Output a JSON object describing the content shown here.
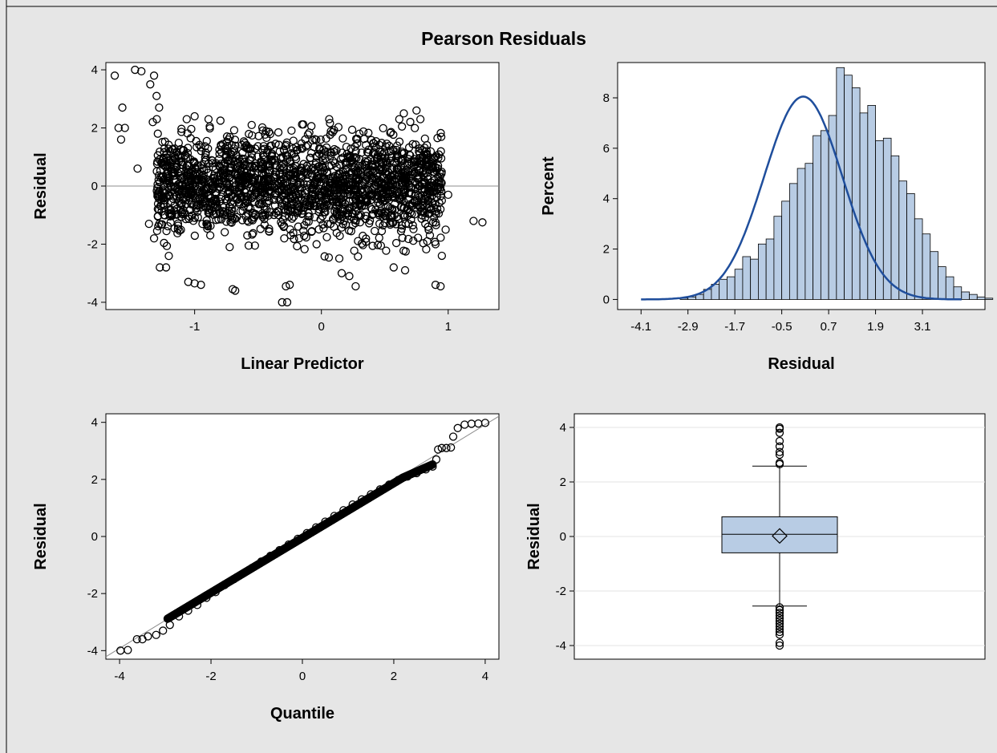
{
  "title": "Pearson Residuals",
  "colors": {
    "background": "#e6e6e6",
    "panel": "#ffffff",
    "bar_fill": "#b8cce4",
    "curve": "#1f4e9c",
    "marker": "#000000",
    "reference_line": "#8c8c8c",
    "grid": "#e3e3e3"
  },
  "chart_data": [
    {
      "id": "residual-vs-predictor",
      "type": "scatter",
      "xlabel": "Linear Predictor",
      "ylabel": "Residual",
      "xlim": [
        -1.7,
        1.4
      ],
      "ylim": [
        -4.25,
        4.25
      ],
      "xticks": [
        -1,
        0,
        1
      ],
      "yticks": [
        -4,
        -2,
        0,
        2,
        4
      ],
      "reference_line_y": 0,
      "marker": "open-circle",
      "points": [
        {
          "x": -1.63,
          "y": 3.8
        },
        {
          "x": -1.6,
          "y": 2.0
        },
        {
          "x": -1.58,
          "y": 1.6
        },
        {
          "x": -1.57,
          "y": 2.7
        },
        {
          "x": -1.55,
          "y": 2.0
        },
        {
          "x": -1.47,
          "y": 4.0
        },
        {
          "x": -1.42,
          "y": 3.95
        },
        {
          "x": -1.35,
          "y": 3.5
        },
        {
          "x": -1.32,
          "y": 3.8
        },
        {
          "x": -1.3,
          "y": 3.1
        },
        {
          "x": -1.28,
          "y": 2.7
        },
        {
          "x": -1.33,
          "y": 2.2
        },
        {
          "x": -1.45,
          "y": 0.6
        },
        {
          "x": -1.36,
          "y": -1.3
        },
        {
          "x": -1.32,
          "y": -1.8
        },
        {
          "x": 1.2,
          "y": -1.2
        },
        {
          "x": 1.27,
          "y": -1.25
        },
        {
          "x": -1.05,
          "y": -3.3
        },
        {
          "x": -1.0,
          "y": -3.35
        },
        {
          "x": -0.95,
          "y": -3.4
        },
        {
          "x": -0.7,
          "y": -3.55
        },
        {
          "x": -0.68,
          "y": -3.6
        },
        {
          "x": -0.28,
          "y": -3.45
        },
        {
          "x": -0.25,
          "y": -3.4
        },
        {
          "x": -0.27,
          "y": -4.0
        },
        {
          "x": -0.31,
          "y": -4.0
        },
        {
          "x": 0.57,
          "y": -2.8
        },
        {
          "x": 0.66,
          "y": -2.9
        },
        {
          "x": 0.9,
          "y": -3.4
        },
        {
          "x": 0.94,
          "y": -3.45
        },
        {
          "x": 0.95,
          "y": -2.4
        },
        {
          "x": 0.9,
          "y": -2.0
        },
        {
          "x": 0.16,
          "y": -3.0
        },
        {
          "x": 0.22,
          "y": -3.1
        },
        {
          "x": 0.27,
          "y": -3.45
        },
        {
          "x": -0.55,
          "y": 2.1
        },
        {
          "x": 0.65,
          "y": 2.5
        },
        {
          "x": 0.75,
          "y": 2.6
        },
        {
          "x": -1.0,
          "y": 2.4
        },
        {
          "x": 0.3,
          "y": 1.8
        },
        {
          "x": 0.95,
          "y": -0.5
        },
        {
          "x": 1.0,
          "y": -0.3
        },
        {
          "x": 0.98,
          "y": -1.5
        },
        {
          "x": 0.92,
          "y": 0.7
        }
      ],
      "cloud": {
        "x_range": [
          -1.3,
          0.95
        ],
        "y_range": [
          -2.8,
          2.3
        ],
        "description_count": 2000
      }
    },
    {
      "id": "residual-histogram",
      "type": "bar",
      "xlabel": "Residual",
      "ylabel": "Percent",
      "xlim": [
        -4.7,
        4.7
      ],
      "ylim": [
        -0.4,
        9.4
      ],
      "xticks": [
        "-4.1",
        "-2.9",
        "-1.7",
        "-0.5",
        "0.7",
        "1.9",
        "3.1"
      ],
      "yticks": [
        0,
        2,
        4,
        6,
        8
      ],
      "bin_width": 0.2,
      "bin_start": -3.1,
      "values": [
        0.05,
        0.1,
        0.2,
        0.4,
        0.6,
        0.8,
        0.9,
        1.2,
        1.7,
        1.6,
        2.2,
        2.4,
        3.3,
        3.9,
        4.6,
        5.2,
        5.4,
        6.5,
        6.7,
        7.3,
        9.2,
        8.9,
        8.4,
        7.4,
        7.7,
        6.3,
        6.4,
        5.7,
        4.7,
        4.2,
        3.2,
        2.6,
        1.9,
        1.3,
        0.9,
        0.5,
        0.3,
        0.2,
        0.1,
        0.05
      ],
      "density_curve": {
        "type": "normal",
        "mean": 0.05,
        "sd": 1.0,
        "peak_percent": 8.05,
        "x_range": [
          -4.1,
          4.1
        ]
      }
    },
    {
      "id": "residual-qq",
      "type": "scatter",
      "xlabel": "Quantile",
      "ylabel": "Residual",
      "xlim": [
        -4.3,
        4.3
      ],
      "ylim": [
        -4.3,
        4.3
      ],
      "xticks": [
        -4,
        -2,
        0,
        2,
        4
      ],
      "yticks": [
        -4,
        -2,
        0,
        2,
        4
      ],
      "reference_line": {
        "slope": 0.98,
        "intercept": 0.0
      },
      "marker": "open-circle",
      "points": [
        {
          "x": -3.98,
          "y": -4.0
        },
        {
          "x": -3.82,
          "y": -3.98
        },
        {
          "x": -3.62,
          "y": -3.6
        },
        {
          "x": -3.5,
          "y": -3.6
        },
        {
          "x": -3.38,
          "y": -3.5
        },
        {
          "x": -3.2,
          "y": -3.45
        },
        {
          "x": -3.05,
          "y": -3.3
        },
        {
          "x": -2.9,
          "y": -3.1
        },
        {
          "x": -2.7,
          "y": -2.8
        },
        {
          "x": -2.5,
          "y": -2.6
        },
        {
          "x": -2.3,
          "y": -2.4
        },
        {
          "x": -2.1,
          "y": -2.15
        },
        {
          "x": -1.9,
          "y": -1.95
        },
        {
          "x": -1.7,
          "y": -1.7
        },
        {
          "x": -1.5,
          "y": -1.5
        },
        {
          "x": -1.3,
          "y": -1.3
        },
        {
          "x": -1.1,
          "y": -1.1
        },
        {
          "x": -0.9,
          "y": -0.88
        },
        {
          "x": -0.7,
          "y": -0.68
        },
        {
          "x": -0.5,
          "y": -0.48
        },
        {
          "x": -0.3,
          "y": -0.28
        },
        {
          "x": -0.1,
          "y": -0.08
        },
        {
          "x": 0.1,
          "y": 0.12
        },
        {
          "x": 0.3,
          "y": 0.32
        },
        {
          "x": 0.5,
          "y": 0.52
        },
        {
          "x": 0.7,
          "y": 0.72
        },
        {
          "x": 0.9,
          "y": 0.92
        },
        {
          "x": 1.1,
          "y": 1.12
        },
        {
          "x": 1.3,
          "y": 1.3
        },
        {
          "x": 1.5,
          "y": 1.48
        },
        {
          "x": 1.7,
          "y": 1.65
        },
        {
          "x": 1.9,
          "y": 1.82
        },
        {
          "x": 2.1,
          "y": 1.98
        },
        {
          "x": 2.3,
          "y": 2.1
        },
        {
          "x": 2.5,
          "y": 2.22
        },
        {
          "x": 2.7,
          "y": 2.35
        },
        {
          "x": 2.85,
          "y": 2.45
        },
        {
          "x": 2.93,
          "y": 2.7
        },
        {
          "x": 2.97,
          "y": 3.05
        },
        {
          "x": 3.05,
          "y": 3.1
        },
        {
          "x": 3.15,
          "y": 3.1
        },
        {
          "x": 3.25,
          "y": 3.12
        },
        {
          "x": 3.3,
          "y": 3.5
        },
        {
          "x": 3.4,
          "y": 3.8
        },
        {
          "x": 3.55,
          "y": 3.92
        },
        {
          "x": 3.7,
          "y": 3.95
        },
        {
          "x": 3.85,
          "y": 3.96
        },
        {
          "x": 4.0,
          "y": 3.98
        }
      ]
    },
    {
      "id": "residual-boxplot",
      "type": "box",
      "ylabel": "Residual",
      "ylim": [
        -4.5,
        4.5
      ],
      "yticks": [
        -4,
        -2,
        0,
        2,
        4
      ],
      "q1": -0.6,
      "median": 0.08,
      "q3": 0.72,
      "mean": 0.02,
      "whisker_low": -2.55,
      "whisker_high": 2.58,
      "outliers": [
        2.65,
        2.7,
        3.0,
        3.1,
        3.3,
        3.5,
        3.8,
        3.95,
        4.0,
        -2.6,
        -2.7,
        -2.8,
        -2.9,
        -3.0,
        -3.1,
        -3.2,
        -3.3,
        -3.4,
        -3.5,
        -3.6,
        -3.9,
        -4.0
      ]
    }
  ]
}
